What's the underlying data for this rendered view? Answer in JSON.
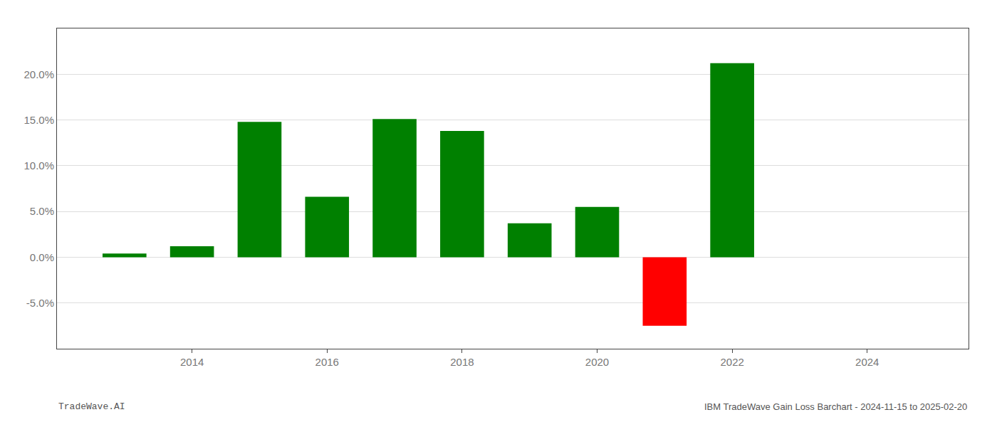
{
  "chart_data": {
    "type": "bar",
    "x": [
      2013,
      2014,
      2015,
      2016,
      2017,
      2018,
      2019,
      2020,
      2021,
      2022
    ],
    "values": [
      0.004,
      0.012,
      0.148,
      0.066,
      0.151,
      0.138,
      0.037,
      0.055,
      -0.075,
      0.212
    ],
    "colors": [
      "#008000",
      "#008000",
      "#008000",
      "#008000",
      "#008000",
      "#008000",
      "#008000",
      "#008000",
      "#ff0000",
      "#008000"
    ],
    "xlim": [
      2012.0,
      2025.5
    ],
    "ylim": [
      -0.1,
      0.25
    ],
    "xticks": [
      2014,
      2016,
      2018,
      2020,
      2022,
      2024
    ],
    "yticks": [
      {
        "value": -0.05,
        "label": "-5.0%"
      },
      {
        "value": 0.0,
        "label": "0.0%"
      },
      {
        "value": 0.05,
        "label": "5.0%"
      },
      {
        "value": 0.1,
        "label": "10.0%"
      },
      {
        "value": 0.15,
        "label": "15.0%"
      },
      {
        "value": 0.2,
        "label": "20.0%"
      }
    ],
    "grid": true,
    "annotations": [
      "TradeWave.AI",
      "IBM TradeWave Gain Loss Barchart - 2024-11-15 to 2025-02-20"
    ]
  }
}
